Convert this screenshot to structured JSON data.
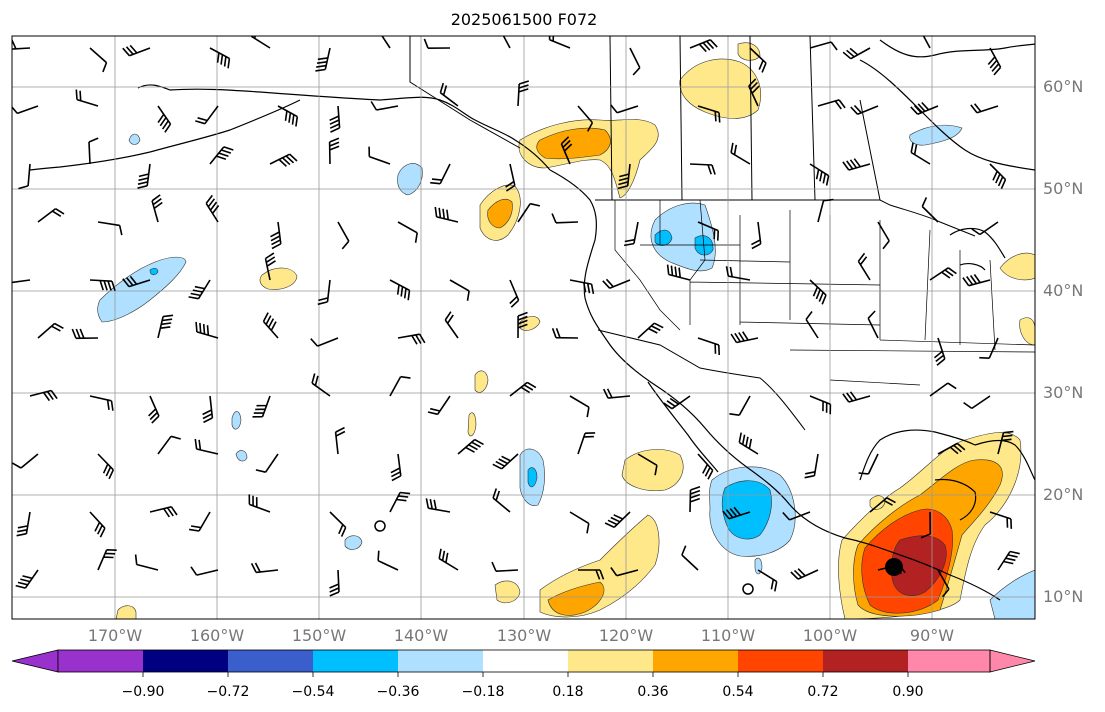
{
  "title": "2025061500 F072",
  "lat_labels": [
    "60°N",
    "50°N",
    "40°N",
    "30°N",
    "20°N",
    "10°N"
  ],
  "lon_labels": [
    "170°W",
    "160°W",
    "150°W",
    "140°W",
    "130°W",
    "120°W",
    "110°W",
    "100°W",
    "90°W"
  ],
  "colorbar": {
    "ticks": [
      "−0.90",
      "−0.72",
      "−0.54",
      "−0.36",
      "−0.18",
      "0.18",
      "0.36",
      "0.54",
      "0.72",
      "0.90"
    ],
    "colors": [
      "#9932cc",
      "#000080",
      "#3a5fcd",
      "#00bfff",
      "#b0e0ff",
      "#ffffff",
      "#ffe88a",
      "#ffa500",
      "#ff4500",
      "#b22222",
      "#ff88aa"
    ]
  },
  "map": {
    "projection": "PlateCarree",
    "extent_lon": [
      -180,
      -80
    ],
    "extent_lat": [
      8,
      65
    ],
    "gridlines": true,
    "gridline_color": "#999999"
  }
}
